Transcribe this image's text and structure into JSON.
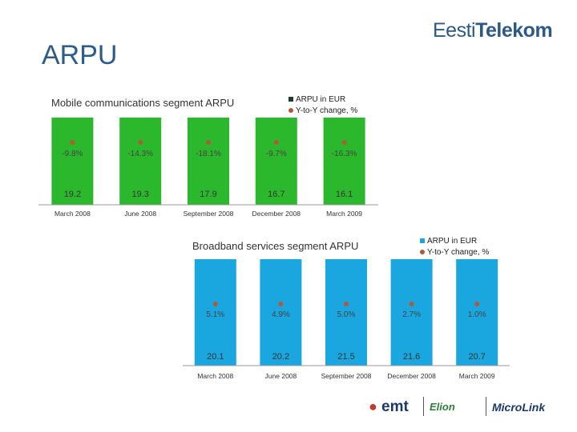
{
  "header": {
    "title": "ARPU",
    "logo_part1": "Eesti",
    "logo_part2": "Telekom"
  },
  "footer_brands": [
    "emt",
    "Elion",
    "MicroLink"
  ],
  "chart_data": [
    {
      "type": "bar",
      "title": "Mobile communications segment ARPU",
      "categories": [
        "March 2008",
        "June 2008",
        "September 2008",
        "December 2008",
        "March 2009"
      ],
      "series": [
        {
          "name": "ARPU in EUR",
          "values": [
            19.2,
            19.3,
            17.9,
            16.7,
            16.1
          ],
          "color": "#2cb82c"
        },
        {
          "name": "Y-to-Y change, %",
          "values": [
            -9.8,
            -14.3,
            -18.1,
            -9.7,
            -16.3
          ],
          "labels": [
            "-9.8%",
            "-14.3%",
            "-18.1%",
            "-9.7%",
            "-16.3%"
          ],
          "color": "#b05a3a"
        }
      ]
    },
    {
      "type": "bar",
      "title": "Broadband services segment ARPU",
      "categories": [
        "March 2008",
        "June 2008",
        "September 2008",
        "December 2008",
        "March 2009"
      ],
      "series": [
        {
          "name": "ARPU in EUR",
          "values": [
            20.1,
            20.2,
            21.5,
            21.6,
            20.7
          ],
          "color": "#1aa6de"
        },
        {
          "name": "Y-to-Y change, %",
          "values": [
            5.1,
            4.9,
            5.0,
            2.7,
            1.0
          ],
          "labels": [
            "5.1%",
            "4.9%",
            "5.0%",
            "2.7%",
            "1.0%"
          ],
          "color": "#b05a3a"
        }
      ]
    }
  ]
}
